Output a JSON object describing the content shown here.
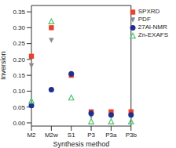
{
  "chart_data": {
    "type": "scatter",
    "x_label": "Synthesis method",
    "y_label": "Inversion",
    "categories": [
      "M2",
      "M2w",
      "S1",
      "P3",
      "P3a",
      "P3b"
    ],
    "ylim": [
      -0.01,
      0.37
    ],
    "yticks": [
      {
        "value": 0,
        "label": "0.00"
      },
      {
        "value": 0.05,
        "label": "0.05"
      },
      {
        "value": 0.1,
        "label": "0.10"
      },
      {
        "value": 0.15,
        "label": "0.15"
      },
      {
        "value": 0.2,
        "label": "0.20"
      },
      {
        "value": 0.25,
        "label": "0.25"
      },
      {
        "value": 0.3,
        "label": "0.30"
      },
      {
        "value": 0.35,
        "label": "0.35"
      }
    ],
    "legend": "upper right",
    "series": [
      {
        "name": "SPXRD",
        "color": "#e8412c",
        "marker": "square",
        "values": [
          0.21,
          0.3,
          0.15,
          0.035,
          0.035,
          0.035
        ]
      },
      {
        "name": "PDF",
        "color": "#8a8a8a",
        "marker": "triangle_down",
        "values": [
          0.18,
          0.26,
          null,
          0.02,
          0.02,
          0.02
        ]
      },
      {
        "name": "27Al-NMR",
        "color": "#1f2f8f",
        "marker": "circle",
        "values": [
          0.055,
          0.105,
          0.155,
          0.03,
          0.025,
          0.025
        ]
      },
      {
        "name": "Zn-EXAFS",
        "color": "#4cc36e",
        "marker": "triangle_open",
        "values": [
          0.07,
          0.32,
          0.08,
          0.005,
          0.005,
          0.005
        ]
      }
    ]
  }
}
